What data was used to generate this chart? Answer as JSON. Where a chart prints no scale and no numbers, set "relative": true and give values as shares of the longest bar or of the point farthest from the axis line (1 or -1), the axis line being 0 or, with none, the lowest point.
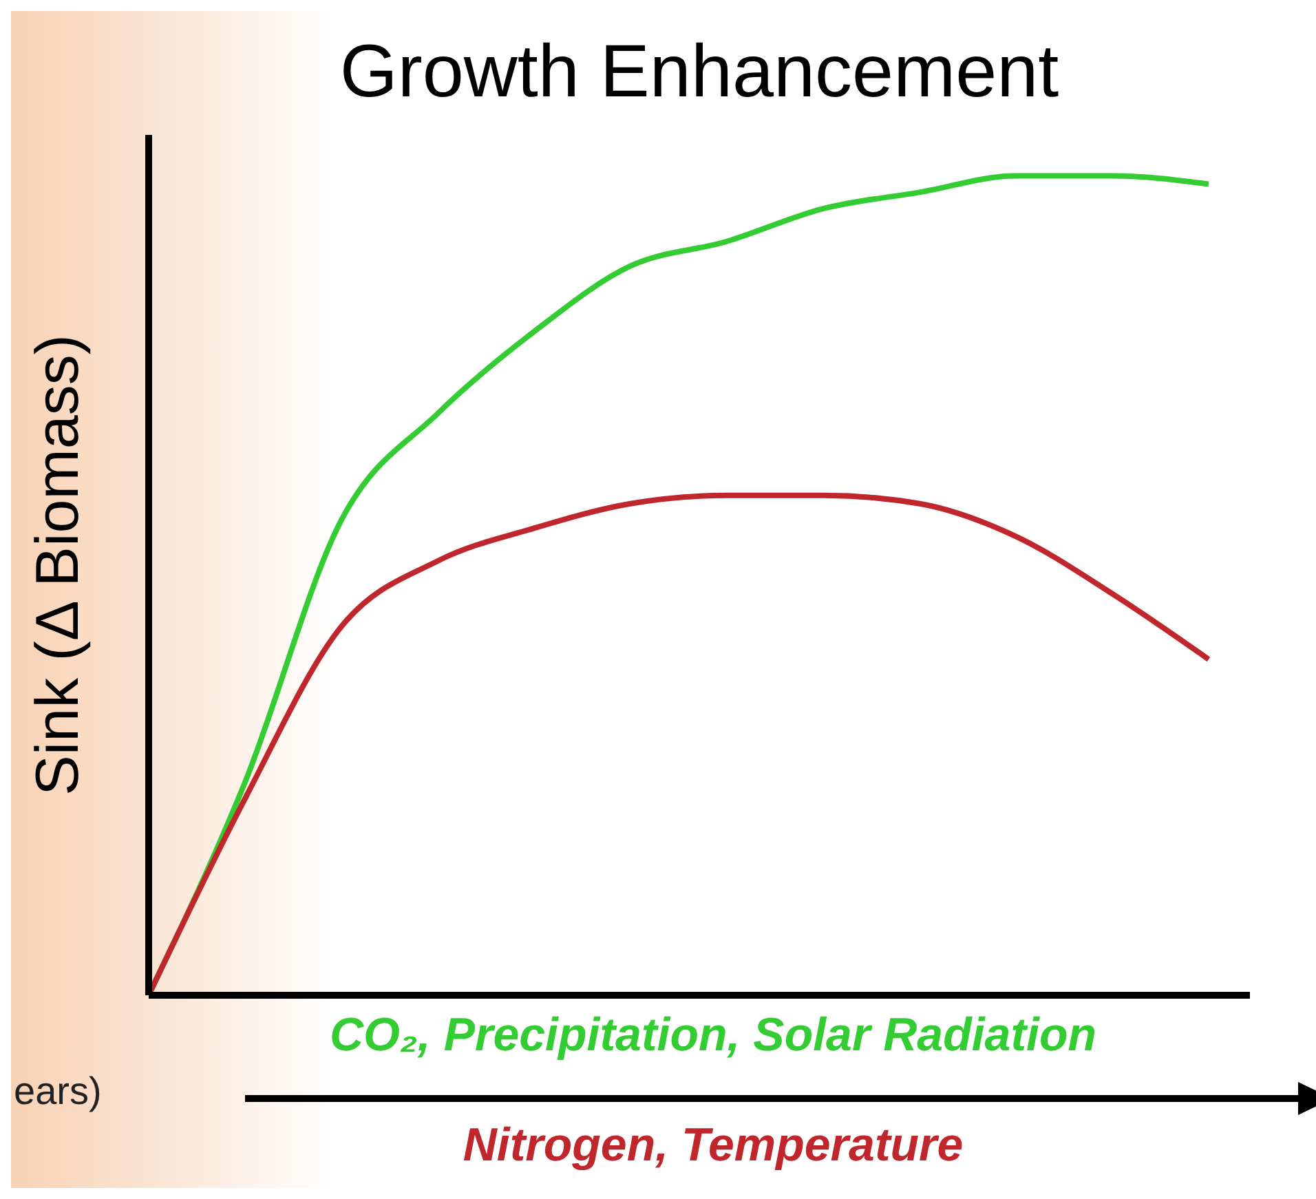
{
  "chart_data": {
    "type": "line",
    "title": "Growth Enhancement",
    "ylabel": "Sink (Δ Biomass)",
    "relative": true,
    "legend": "bottom",
    "marker": "none",
    "line_style": "solid",
    "categories": [
      null,
      null,
      null,
      null,
      null,
      null,
      null,
      null,
      null,
      null,
      null,
      null
    ],
    "series": [
      {
        "name": "CO₂, Precipitation, Solar Radiation",
        "color": "#33cc33",
        "values": [
          0,
          0.26,
          0.58,
          0.71,
          0.81,
          0.89,
          0.92,
          0.96,
          0.98,
          1.0,
          1.0,
          0.99
        ]
      },
      {
        "name": "Nitrogen, Temperature",
        "color": "#c0272d",
        "values": [
          0,
          0.24,
          0.45,
          0.53,
          0.57,
          0.6,
          0.61,
          0.61,
          0.6,
          0.56,
          0.49,
          0.41
        ]
      }
    ],
    "annotations": [
      "ears)"
    ]
  }
}
